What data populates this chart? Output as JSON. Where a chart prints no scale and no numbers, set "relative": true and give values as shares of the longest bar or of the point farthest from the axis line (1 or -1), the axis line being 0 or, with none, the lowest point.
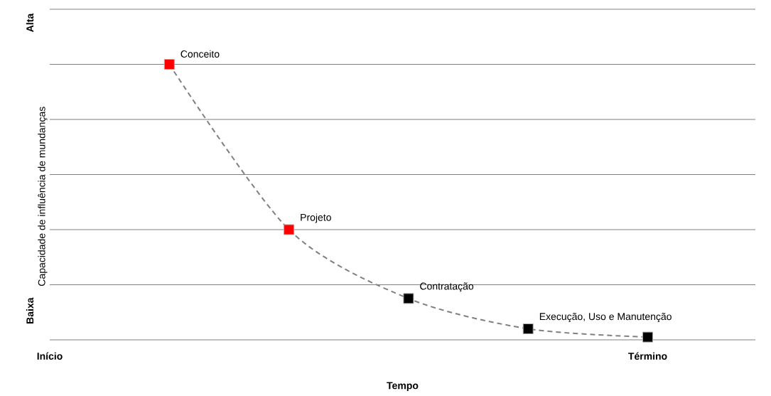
{
  "chart_data": {
    "type": "line",
    "relative": true,
    "xlabel": "Tempo",
    "ylabel": "Capacidade de influência de mundanças",
    "categories": [
      "Início",
      null,
      null,
      null,
      null,
      "Término"
    ],
    "values": [
      null,
      1,
      0.4,
      0.15,
      0.04,
      0.01
    ],
    "color": "#808080",
    "colors": [
      null,
      "#ff0000",
      "#ff0000",
      "#000000",
      "#000000",
      "#000000"
    ],
    "marker": "square",
    "line_style": "dashed",
    "grid": "y",
    "annotations": [
      "Conceito",
      "Projeto",
      "Contratação",
      "Execução, Uso e Manutenção",
      "Alta",
      "Baixa"
    ]
  }
}
